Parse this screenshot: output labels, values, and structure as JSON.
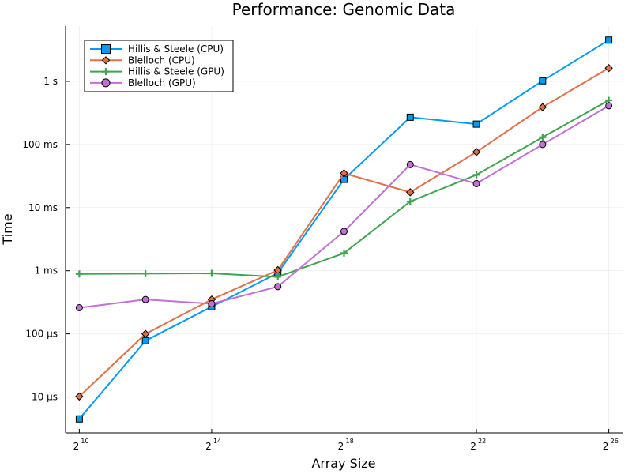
{
  "chart_data": {
    "type": "line",
    "title": "Performance: Genomic Data",
    "xlabel": "Array Size",
    "ylabel": "Time",
    "x_scale": "log2",
    "y_scale": "log10",
    "x": [
      1024,
      4096,
      16384,
      65536,
      262144,
      1048576,
      4194304,
      16777216,
      67108864
    ],
    "xlim": [
      768,
      89478485
    ],
    "ylim": [
      2.7e-06,
      7.5
    ],
    "x_ticks": [
      {
        "value": 1024,
        "base": "2",
        "exp": "10"
      },
      {
        "value": 16384,
        "base": "2",
        "exp": "14"
      },
      {
        "value": 262144,
        "base": "2",
        "exp": "18"
      },
      {
        "value": 4194304,
        "base": "2",
        "exp": "22"
      },
      {
        "value": 67108864,
        "base": "2",
        "exp": "26"
      }
    ],
    "y_ticks": [
      {
        "value": 1e-05,
        "label": "10 μs"
      },
      {
        "value": 0.0001,
        "label": "100 μs"
      },
      {
        "value": 0.001,
        "label": "1 ms"
      },
      {
        "value": 0.01,
        "label": "10 ms"
      },
      {
        "value": 0.1,
        "label": "100 ms"
      },
      {
        "value": 1,
        "label": "1 s"
      }
    ],
    "grid": true,
    "legend_position": "top-left",
    "series": [
      {
        "name": "Hillis & Steele (CPU)",
        "color": "#009AF9",
        "marker": "square",
        "values": [
          4.5e-06,
          7.8e-05,
          0.00027,
          0.00092,
          0.028,
          0.27,
          0.21,
          1.02,
          4.5
        ]
      },
      {
        "name": "Blelloch (CPU)",
        "color": "#E26F46",
        "marker": "diamond",
        "values": [
          1.02e-05,
          0.0001,
          0.00035,
          0.00102,
          0.035,
          0.0175,
          0.076,
          0.39,
          1.62
        ]
      },
      {
        "name": "Hillis & Steele (GPU)",
        "color": "#3EA44E",
        "marker": "cross",
        "values": [
          0.00089,
          0.0009,
          0.00091,
          0.0008,
          0.0019,
          0.0125,
          0.033,
          0.13,
          0.5
        ]
      },
      {
        "name": "Blelloch (GPU)",
        "color": "#C271D2",
        "marker": "circle",
        "values": [
          0.00026,
          0.00035,
          0.0003,
          0.00056,
          0.0042,
          0.048,
          0.024,
          0.1,
          0.41
        ]
      }
    ]
  }
}
